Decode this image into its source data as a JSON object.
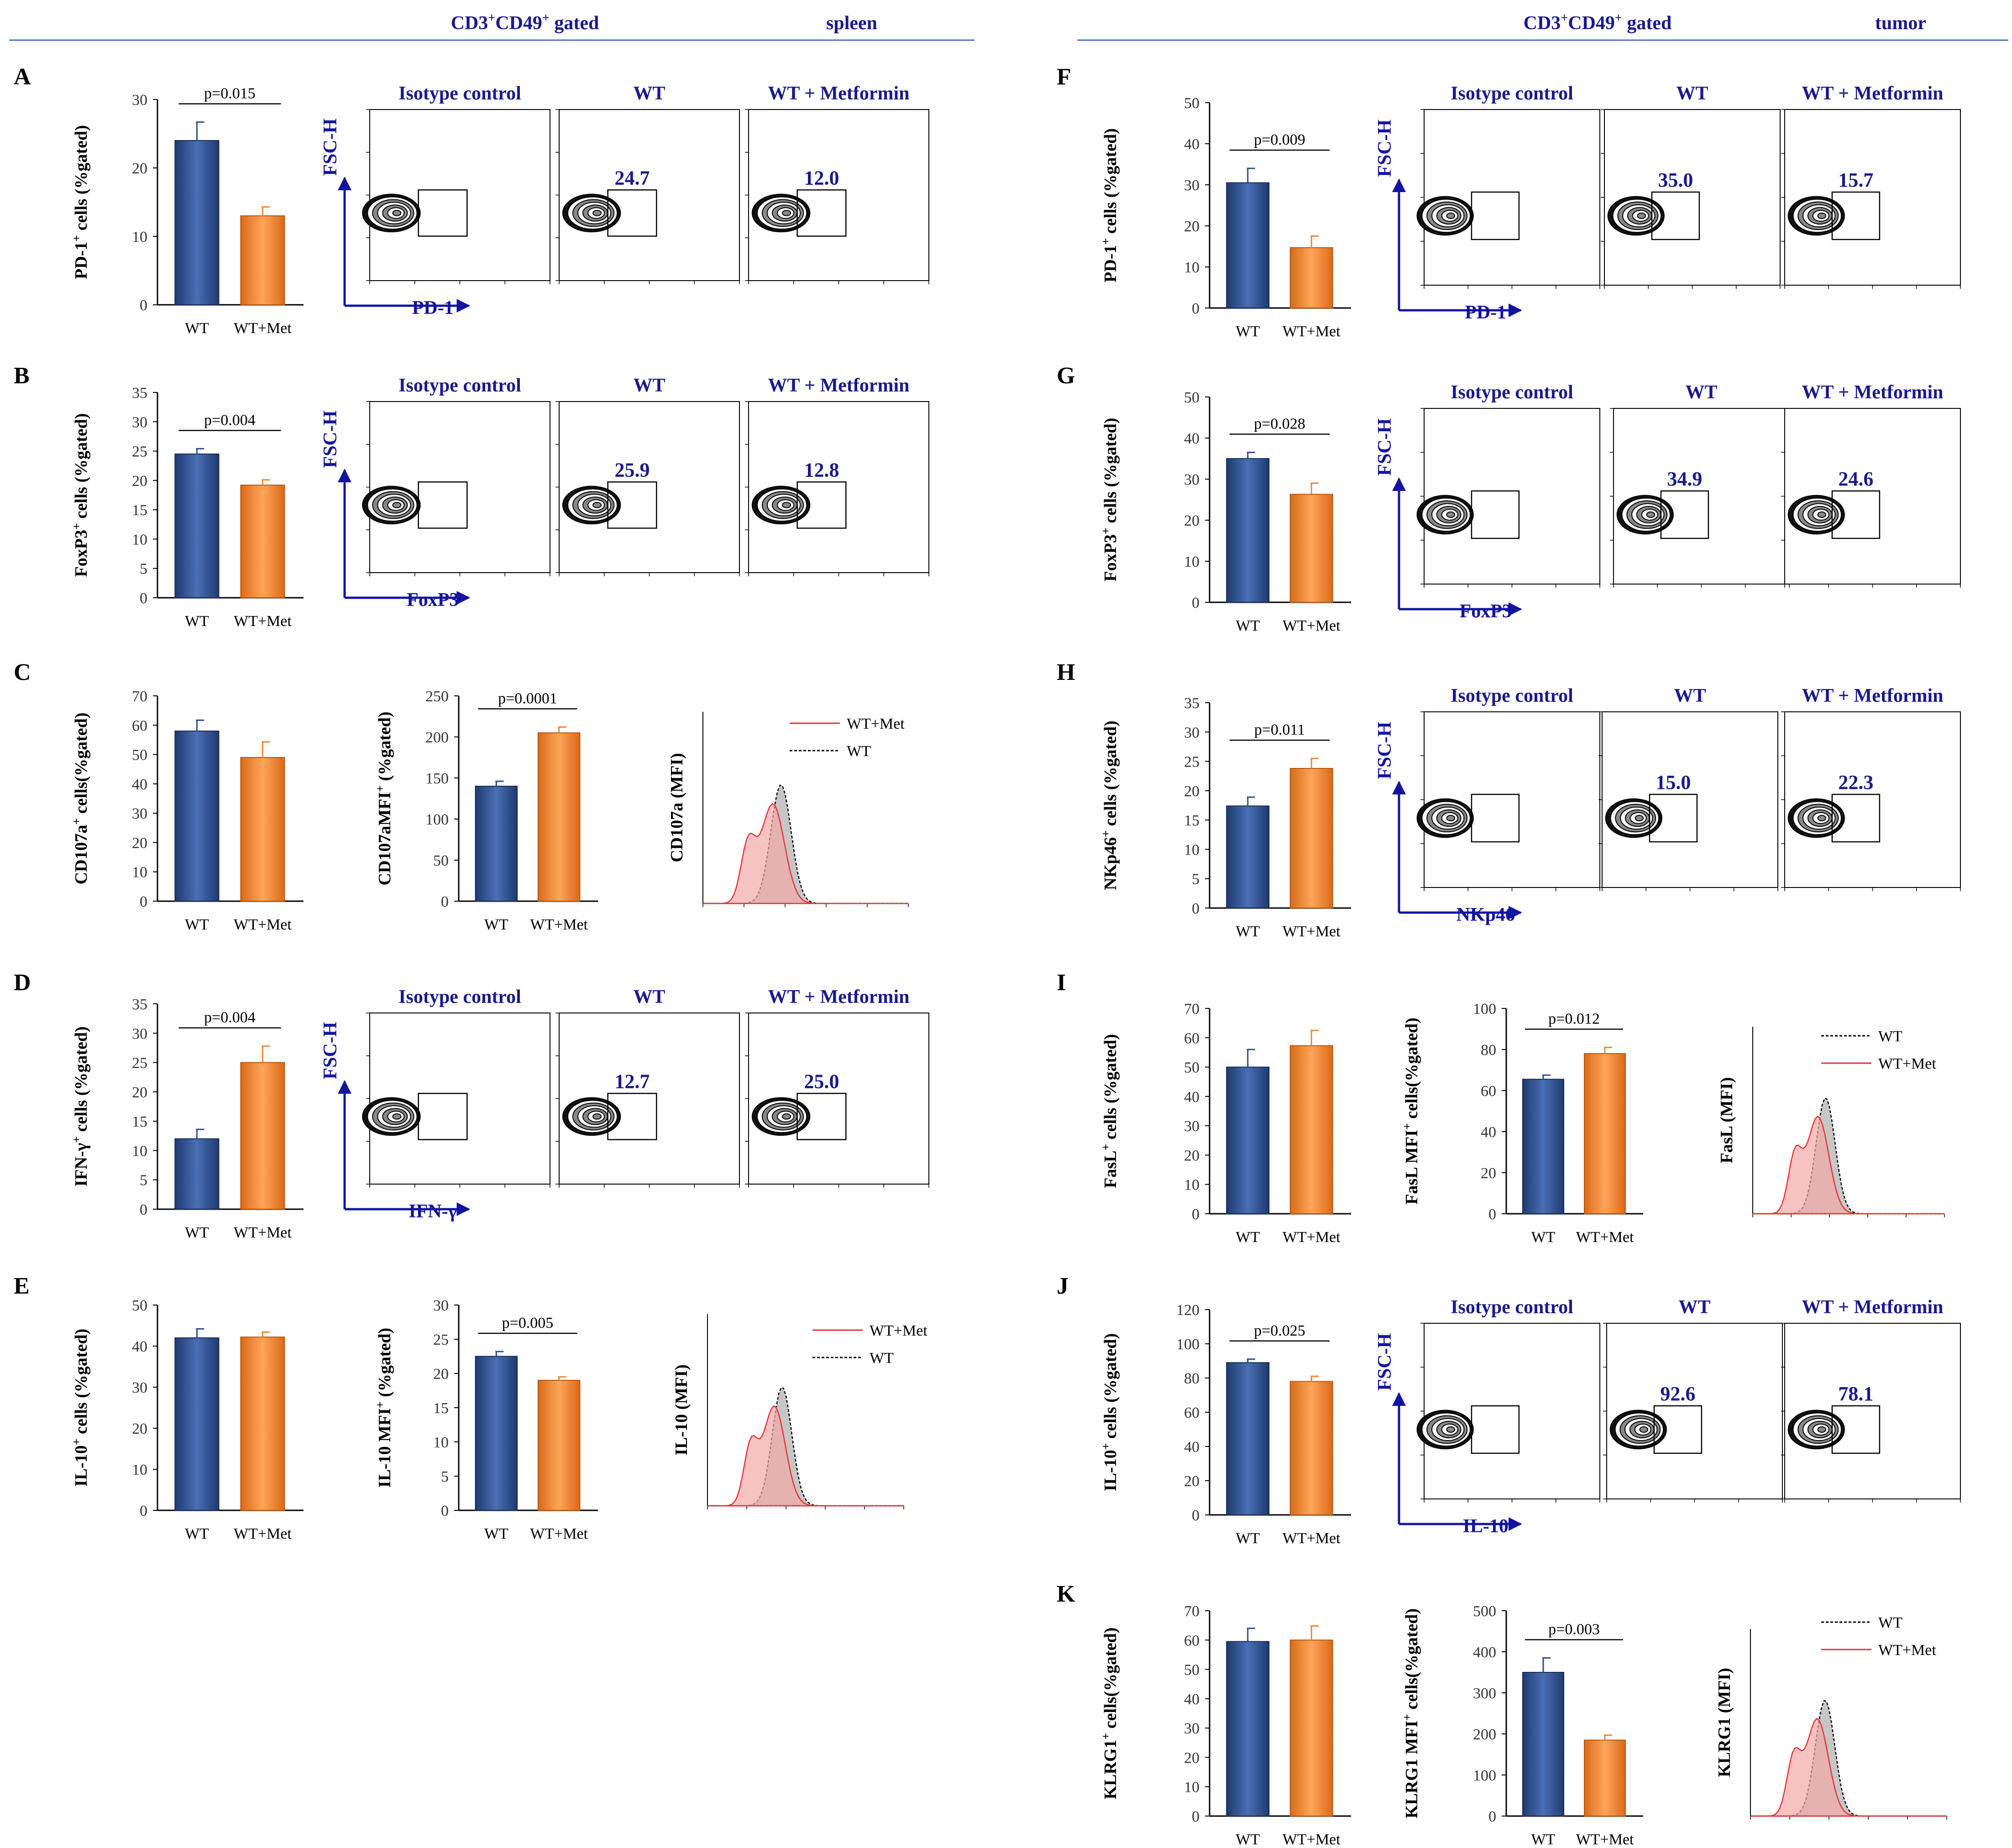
{
  "header": {
    "left": {
      "label": "CD3+CD49+ gated",
      "tissue": "spleen"
    },
    "right": {
      "label": "CD3+CD49+ gated",
      "tissue": "tumor"
    }
  },
  "colors": {
    "wt": "#2b4c8c",
    "met": "#f2852e",
    "blue_text": "#1a1a8c",
    "axis_blue": "#1414a0",
    "hist_red": "#e83030"
  },
  "flow_titles": {
    "isotype": "Isotype control",
    "wt": "WT",
    "met": "WT + Metformin"
  },
  "flow_yaxis": "FSC-H",
  "chart_data": [
    {
      "panel": "A",
      "type": "bar",
      "ylabel": "PD-1+ cells (%gated)",
      "categories": [
        "WT",
        "WT+Met"
      ],
      "values": [
        24,
        13
      ],
      "errors": [
        2.7,
        1.3
      ],
      "ylim": [
        0,
        30
      ],
      "yticks": [
        0,
        10,
        20,
        30
      ],
      "pvalue": "p=0.015"
    },
    {
      "panel": "B",
      "type": "bar",
      "ylabel": "FoxP3+ cells (%gated)",
      "categories": [
        "WT",
        "WT+Met"
      ],
      "values": [
        24.5,
        19.2
      ],
      "errors": [
        0.9,
        0.9
      ],
      "ylim": [
        0,
        35
      ],
      "yticks": [
        0,
        5,
        10,
        15,
        20,
        25,
        30,
        35
      ],
      "pvalue": "p=0.004"
    },
    {
      "panel": "C",
      "type": "bar",
      "ylabel": "CD107a+ cells(%gated)",
      "categories": [
        "WT",
        "WT+Met"
      ],
      "values": [
        58,
        49
      ],
      "errors": [
        3.7,
        5.3
      ],
      "ylim": [
        0,
        70
      ],
      "yticks": [
        0,
        10,
        20,
        30,
        40,
        50,
        60,
        70
      ],
      "pvalue": ""
    },
    {
      "panel": "C2",
      "type": "bar",
      "ylabel": "CD107aMFI+ (%gated)",
      "categories": [
        "WT",
        "WT+Met"
      ],
      "values": [
        140,
        205
      ],
      "errors": [
        6,
        7
      ],
      "ylim": [
        0,
        250
      ],
      "yticks": [
        0,
        50,
        100,
        150,
        200,
        250
      ],
      "pvalue": "p=0.0001"
    },
    {
      "panel": "D",
      "type": "bar",
      "ylabel": "IFN-γ+ cells (%gated)",
      "categories": [
        "WT",
        "WT+Met"
      ],
      "values": [
        12,
        25
      ],
      "errors": [
        1.6,
        2.8
      ],
      "ylim": [
        0,
        35
      ],
      "yticks": [
        0,
        5,
        10,
        15,
        20,
        25,
        30,
        35
      ],
      "pvalue": "p=0.004"
    },
    {
      "panel": "E",
      "type": "bar",
      "ylabel": "IL-10+ cells (%gated)",
      "categories": [
        "WT",
        "WT+Met"
      ],
      "values": [
        42,
        42.2
      ],
      "errors": [
        2.2,
        1.2
      ],
      "ylim": [
        0,
        50
      ],
      "yticks": [
        0,
        10,
        20,
        30,
        40,
        50
      ],
      "pvalue": ""
    },
    {
      "panel": "E2",
      "type": "bar",
      "ylabel": "IL-10 MFI+ (%gated)",
      "categories": [
        "WT",
        "WT+Met"
      ],
      "values": [
        22.5,
        19
      ],
      "errors": [
        0.7,
        0.5
      ],
      "ylim": [
        0,
        30
      ],
      "yticks": [
        0,
        5,
        10,
        15,
        20,
        25,
        30
      ],
      "pvalue": "p=0.005"
    },
    {
      "panel": "F",
      "type": "bar",
      "ylabel": "PD-1+ cells (%gated)",
      "categories": [
        "WT",
        "WT+Met"
      ],
      "values": [
        30.5,
        14.7
      ],
      "errors": [
        3.5,
        2.8
      ],
      "ylim": [
        0,
        50
      ],
      "yticks": [
        0,
        10,
        20,
        30,
        40,
        50
      ],
      "pvalue": "p=0.009"
    },
    {
      "panel": "G",
      "type": "bar",
      "ylabel": "FoxP3+ cells (%gated)",
      "categories": [
        "WT",
        "WT+Met"
      ],
      "values": [
        35,
        26.3
      ],
      "errors": [
        1.5,
        2.7
      ],
      "ylim": [
        0,
        50
      ],
      "yticks": [
        0,
        10,
        20,
        30,
        40,
        50
      ],
      "pvalue": "p=0.028"
    },
    {
      "panel": "H",
      "type": "bar",
      "ylabel": "NKp46+ cells (%gated)",
      "categories": [
        "WT",
        "WT+Met"
      ],
      "values": [
        17.4,
        23.8
      ],
      "errors": [
        1.5,
        1.7
      ],
      "ylim": [
        0,
        35
      ],
      "yticks": [
        0,
        5,
        10,
        15,
        20,
        25,
        30,
        35
      ],
      "pvalue": "p=0.011"
    },
    {
      "panel": "I",
      "type": "bar",
      "ylabel": "FasL+ cells (%gated)",
      "categories": [
        "WT",
        "WT+Met"
      ],
      "values": [
        50,
        57.3
      ],
      "errors": [
        6,
        5.2
      ],
      "ylim": [
        0,
        70
      ],
      "yticks": [
        0,
        10,
        20,
        30,
        40,
        50,
        60,
        70
      ],
      "pvalue": ""
    },
    {
      "panel": "I2",
      "type": "bar",
      "ylabel": "FasL MFI+ cells(%gated)",
      "categories": [
        "WT",
        "WT+Met"
      ],
      "values": [
        65.5,
        78
      ],
      "errors": [
        2,
        3
      ],
      "ylim": [
        0,
        100
      ],
      "yticks": [
        0,
        20,
        40,
        60,
        80,
        100
      ],
      "pvalue": "p=0.012"
    },
    {
      "panel": "J",
      "type": "bar",
      "ylabel": "IL-10+ cells (%gated)",
      "categories": [
        "WT",
        "WT+Met"
      ],
      "values": [
        89,
        78
      ],
      "errors": [
        2,
        3
      ],
      "ylim": [
        0,
        120
      ],
      "yticks": [
        0,
        20,
        40,
        60,
        80,
        100,
        120
      ],
      "pvalue": "p=0.025"
    },
    {
      "panel": "K",
      "type": "bar",
      "ylabel": "KLRG1+ cells(%gated)",
      "categories": [
        "WT",
        "WT+Met"
      ],
      "values": [
        59.5,
        60
      ],
      "errors": [
        4.5,
        4.8
      ],
      "ylim": [
        0,
        70
      ],
      "yticks": [
        0,
        10,
        20,
        30,
        40,
        50,
        60,
        70
      ],
      "pvalue": ""
    },
    {
      "panel": "K2",
      "type": "bar",
      "ylabel": "KLRG1 MFI+ cells(%gated)",
      "categories": [
        "WT",
        "WT+Met"
      ],
      "values": [
        350,
        185
      ],
      "errors": [
        35,
        12
      ],
      "ylim": [
        0,
        500
      ],
      "yticks": [
        0,
        100,
        200,
        300,
        400,
        500
      ],
      "pvalue": "p=0.003"
    }
  ],
  "flow_panels": [
    {
      "panel": "A",
      "marker": "PD-1",
      "wt_value": "24.7",
      "met_value": "12.0"
    },
    {
      "panel": "B",
      "marker": "FoxP3",
      "wt_value": "25.9",
      "met_value": "12.8"
    },
    {
      "panel": "D",
      "marker": "IFN-γ",
      "wt_value": "12.7",
      "met_value": "25.0"
    },
    {
      "panel": "F",
      "marker": "PD-1",
      "wt_value": "35.0",
      "met_value": "15.7"
    },
    {
      "panel": "G",
      "marker": "FoxP3",
      "wt_value": "34.9",
      "met_value": "24.6"
    },
    {
      "panel": "H",
      "marker": "NKp46",
      "wt_value": "15.0",
      "met_value": "22.3"
    },
    {
      "panel": "J",
      "marker": "IL-10",
      "wt_value": "92.6",
      "met_value": "78.1"
    }
  ],
  "histograms": [
    {
      "panel": "C",
      "ylabel": "CD107a (MFI)",
      "legend": [
        "WT+Met",
        "WT"
      ],
      "first_style": "red"
    },
    {
      "panel": "E",
      "ylabel": "IL-10 (MFI)",
      "legend": [
        "WT+Met",
        "WT"
      ],
      "first_style": "red"
    },
    {
      "panel": "I",
      "ylabel": "FasL (MFI)",
      "legend": [
        "WT",
        "WT+Met"
      ],
      "first_style": "black"
    },
    {
      "panel": "K",
      "ylabel": "KLRG1 (MFI)",
      "legend": [
        "WT",
        "WT+Met"
      ],
      "first_style": "black"
    }
  ],
  "panel_letters": [
    "A",
    "B",
    "C",
    "D",
    "E",
    "F",
    "G",
    "H",
    "I",
    "J",
    "K"
  ]
}
